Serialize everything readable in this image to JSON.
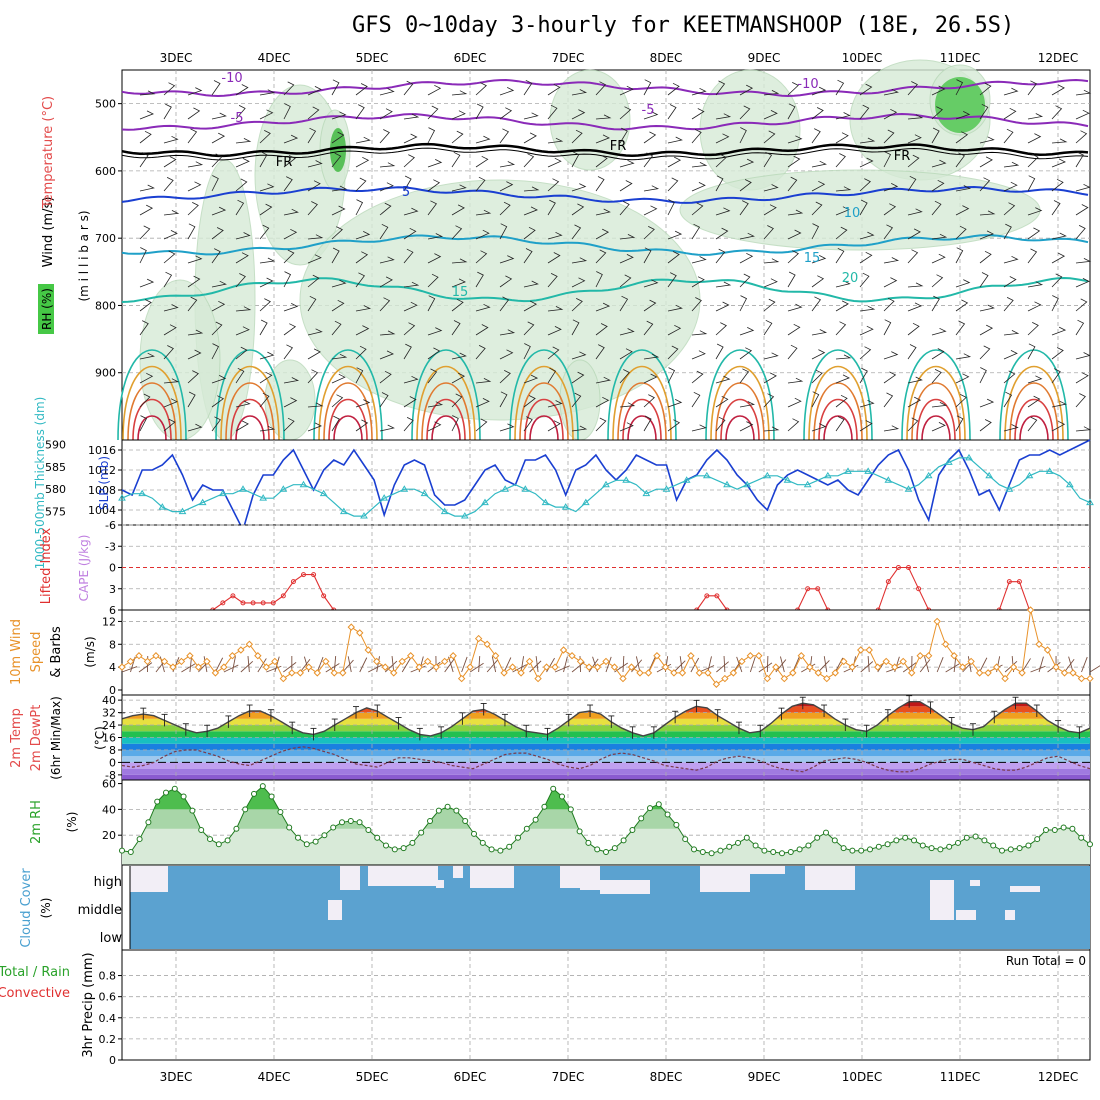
{
  "title": "GFS 0~10day 3-hourly for KEETMANSHOOP (18E, 26.5S)",
  "days": [
    "3DEC",
    "4DEC",
    "5DEC",
    "6DEC",
    "7DEC",
    "8DEC",
    "9DEC",
    "10DEC",
    "11DEC",
    "12DEC"
  ],
  "colors": {
    "pressure_line": "#1a3fd1",
    "thickness_line": "#31b9c3",
    "lifted_index": "#e03030",
    "wind_speed": "#e8922a",
    "rh": "#2aa22a",
    "cloud": "#5ba2d0",
    "precip_rain": "#2aa22a",
    "precip_conv": "#e03030"
  },
  "labels": {
    "wind_axis": "Wind (m/s)",
    "temp_axis": "Temperature (°C)",
    "rh_box": "RH (%)",
    "millibars": "(m i l l i b a r s)",
    "thickness": "1000-500mb Thickness (dm)",
    "slp": "SLP (mb)",
    "lifted_index": "Lifted Index",
    "cape": "CAPE (J/kg)",
    "wind10": "10m Wind",
    "speed": "Speed",
    "barbs": "& Barbs",
    "ms": "(m/s)",
    "temp2m": "2m Temp",
    "dewpt": "2m DewPt",
    "minmax": "(6hr Min/Max)",
    "degc": "(°C)",
    "rh2m": "2m RH",
    "pct": "(%)",
    "cloud": "Cloud Cover",
    "cloud_pct": "(%)",
    "cloud_high": "high",
    "cloud_middle": "middle",
    "cloud_low": "low",
    "precip_total": "Total / Rain",
    "precip_conv": "Convective",
    "precip": "3hr Precip (mm)",
    "run_total": "Run Total = 0"
  },
  "chart_data": [
    {
      "type": "line",
      "name": "upper-air cross section",
      "y_ticks": [
        500,
        600,
        700,
        800,
        900
      ],
      "contour_labels": [
        "-10",
        "-5",
        "FR",
        "5",
        "10",
        "15",
        "20",
        "-10",
        "-5",
        "FR",
        "FR",
        "15"
      ],
      "ylim": [
        1000,
        450
      ]
    },
    {
      "type": "line",
      "name": "SLP and thickness",
      "y_left_ticks": [
        575,
        580,
        585,
        590
      ],
      "y_right_ticks": [
        1004,
        1008,
        1012,
        1016
      ],
      "slp": [
        1008,
        1007,
        1012,
        1012,
        1013,
        1015,
        1011,
        1006,
        1009,
        1008,
        1008,
        1004,
        1000,
        1007,
        1011,
        1011,
        1014,
        1016,
        1012,
        1008,
        1012,
        1014,
        1013,
        1016,
        1013,
        1010,
        1003,
        1009,
        1013,
        1014,
        1013,
        1007,
        1005,
        1005,
        1006,
        1009,
        1012,
        1013,
        1010,
        1009,
        1014,
        1014,
        1015,
        1012,
        1007,
        1012,
        1013,
        1015,
        1012,
        1010,
        1012,
        1015,
        1014,
        1013,
        1013,
        1006,
        1010,
        1011,
        1014,
        1016,
        1014,
        1011,
        1009,
        1006,
        1004,
        1009,
        1011,
        1012,
        1011,
        1010,
        1009,
        1010,
        1008,
        1007,
        1010,
        1013,
        1015,
        1016,
        1012,
        1006,
        1002,
        1011,
        1014,
        1016,
        1012,
        1007,
        1008,
        1004,
        1009,
        1014,
        1015,
        1015,
        1016,
        1015,
        1016,
        1017,
        1018
      ],
      "thickness": [
        578,
        579,
        579,
        578,
        576,
        575,
        575,
        576,
        577,
        578,
        579,
        579,
        580,
        579,
        578,
        578,
        580,
        581,
        581,
        580,
        579,
        577,
        575,
        574,
        574,
        576,
        578,
        579,
        580,
        580,
        579,
        577,
        575,
        574,
        574,
        575,
        577,
        579,
        580,
        581,
        580,
        579,
        577,
        576,
        576,
        575,
        577,
        579,
        581,
        582,
        582,
        581,
        579,
        580,
        580,
        581,
        582,
        583,
        583,
        582,
        581,
        580,
        581,
        582,
        583,
        583,
        582,
        581,
        581,
        582,
        583,
        583,
        584,
        584,
        584,
        583,
        582,
        581,
        580,
        581,
        583,
        585,
        586,
        587,
        587,
        585,
        583,
        581,
        580,
        581,
        583,
        584,
        584,
        583,
        581,
        578,
        577
      ]
    },
    {
      "type": "line",
      "name": "Lifted Index",
      "y_ticks": [
        -6,
        -3,
        0,
        3,
        6
      ],
      "values_segments": [
        {
          "x_start": 9,
          "values": [
            6,
            5,
            4,
            5,
            5,
            5,
            5,
            4,
            2,
            1,
            1,
            4,
            6
          ]
        },
        {
          "x_start": 57,
          "values": [
            6,
            4,
            4,
            6
          ]
        },
        {
          "x_start": 67,
          "values": [
            6,
            3,
            3,
            6
          ]
        },
        {
          "x_start": 75,
          "values": [
            6,
            2,
            0,
            0,
            3,
            6
          ]
        },
        {
          "x_start": 87,
          "values": [
            6,
            2,
            2,
            6
          ]
        }
      ]
    },
    {
      "type": "line",
      "name": "10m wind speed",
      "y_ticks": [
        0,
        4,
        8,
        12
      ],
      "values": [
        4,
        5,
        6,
        5,
        6,
        5,
        4,
        5,
        6,
        4,
        5,
        3,
        4,
        6,
        7,
        8,
        6,
        4,
        5,
        2,
        3,
        3,
        4,
        3,
        5,
        3,
        3,
        11,
        10,
        7,
        5,
        4,
        3,
        5,
        6,
        4,
        5,
        4,
        5,
        6,
        2,
        4,
        9,
        8,
        6,
        3,
        4,
        3,
        5,
        2,
        4,
        4,
        7,
        6,
        5,
        4,
        4,
        5,
        4,
        2,
        4,
        3,
        3,
        6,
        4,
        3,
        3,
        6,
        3,
        3,
        1,
        2,
        3,
        5,
        6,
        6,
        2,
        4,
        2,
        3,
        6,
        4,
        3,
        2,
        3,
        5,
        4,
        7,
        7,
        4,
        5,
        4,
        5,
        3,
        6,
        6,
        12,
        8,
        6,
        4,
        5,
        3,
        3,
        4,
        2,
        4,
        3,
        14,
        8,
        7,
        4,
        3,
        3,
        2,
        2
      ]
    },
    {
      "type": "area",
      "name": "2m temperature and dewpoint",
      "y_ticks": [
        -8,
        0,
        8,
        16,
        24,
        32,
        40
      ],
      "temp": [
        28,
        30,
        31,
        30,
        27,
        24,
        21,
        19,
        20,
        22,
        26,
        30,
        33,
        33,
        30,
        26,
        22,
        19,
        18,
        20,
        24,
        28,
        32,
        35,
        33,
        29,
        25,
        21,
        18,
        17,
        19,
        23,
        28,
        33,
        34,
        31,
        27,
        23,
        20,
        19,
        18,
        22,
        27,
        32,
        33,
        31,
        26,
        22,
        19,
        17,
        19,
        24,
        29,
        33,
        36,
        35,
        30,
        26,
        22,
        19,
        20,
        25,
        31,
        36,
        38,
        37,
        33,
        28,
        24,
        21,
        20,
        24,
        30,
        35,
        39,
        39,
        35,
        30,
        25,
        22,
        21,
        23,
        29,
        34,
        38,
        38,
        33,
        27,
        23,
        20,
        19,
        22
      ],
      "dewpt": [
        -2,
        -3,
        -2,
        0,
        4,
        7,
        8,
        8,
        6,
        4,
        1,
        -1,
        -2,
        1,
        4,
        7,
        9,
        10,
        9,
        7,
        5,
        2,
        -1,
        -2,
        -3,
        0,
        3,
        3,
        2,
        1,
        0,
        -2,
        -3,
        -4,
        -1,
        2,
        5,
        6,
        6,
        4,
        2,
        -1,
        -3,
        -4,
        -2,
        2,
        5,
        6,
        5,
        3,
        1,
        -2,
        -3,
        -4,
        -5,
        -3,
        1,
        3,
        4,
        3,
        1,
        -2,
        -4,
        -5,
        -6,
        -3,
        1,
        2,
        3,
        2,
        0,
        -3,
        -5,
        -6,
        -6,
        -4,
        -1,
        1,
        2,
        2,
        0,
        -2,
        -4,
        -5,
        -5,
        -3,
        0,
        3,
        4,
        1,
        -2,
        -4
      ]
    },
    {
      "type": "area",
      "name": "2m relative humidity",
      "y_ticks": [
        20,
        40,
        60
      ],
      "values": [
        8,
        7,
        17,
        30,
        46,
        53,
        56,
        50,
        39,
        24,
        17,
        13,
        16,
        25,
        40,
        52,
        58,
        50,
        38,
        26,
        18,
        13,
        15,
        20,
        26,
        30,
        31,
        30,
        24,
        18,
        12,
        9,
        10,
        14,
        22,
        31,
        39,
        42,
        39,
        31,
        21,
        14,
        9,
        8,
        11,
        18,
        25,
        32,
        42,
        56,
        50,
        40,
        23,
        14,
        9,
        7,
        10,
        16,
        24,
        33,
        41,
        44,
        36,
        28,
        17,
        9,
        7,
        6,
        8,
        11,
        14,
        18,
        12,
        8,
        7,
        6,
        7,
        9,
        12,
        18,
        22,
        16,
        10,
        8,
        8,
        9,
        11,
        13,
        16,
        18,
        16,
        12,
        10,
        9,
        11,
        14,
        18,
        19,
        16,
        12,
        8,
        9,
        10,
        12,
        17,
        24,
        24,
        26,
        25,
        18,
        13
      ]
    },
    {
      "type": "heatmap",
      "name": "cloud cover",
      "categories": [
        "high",
        "middle",
        "low"
      ]
    },
    {
      "type": "bar",
      "name": "3hr precip",
      "y_ticks": [
        0,
        0.2,
        0.4,
        0.6,
        0.8
      ],
      "values": [],
      "ylim": [
        0,
        0.9
      ]
    }
  ]
}
